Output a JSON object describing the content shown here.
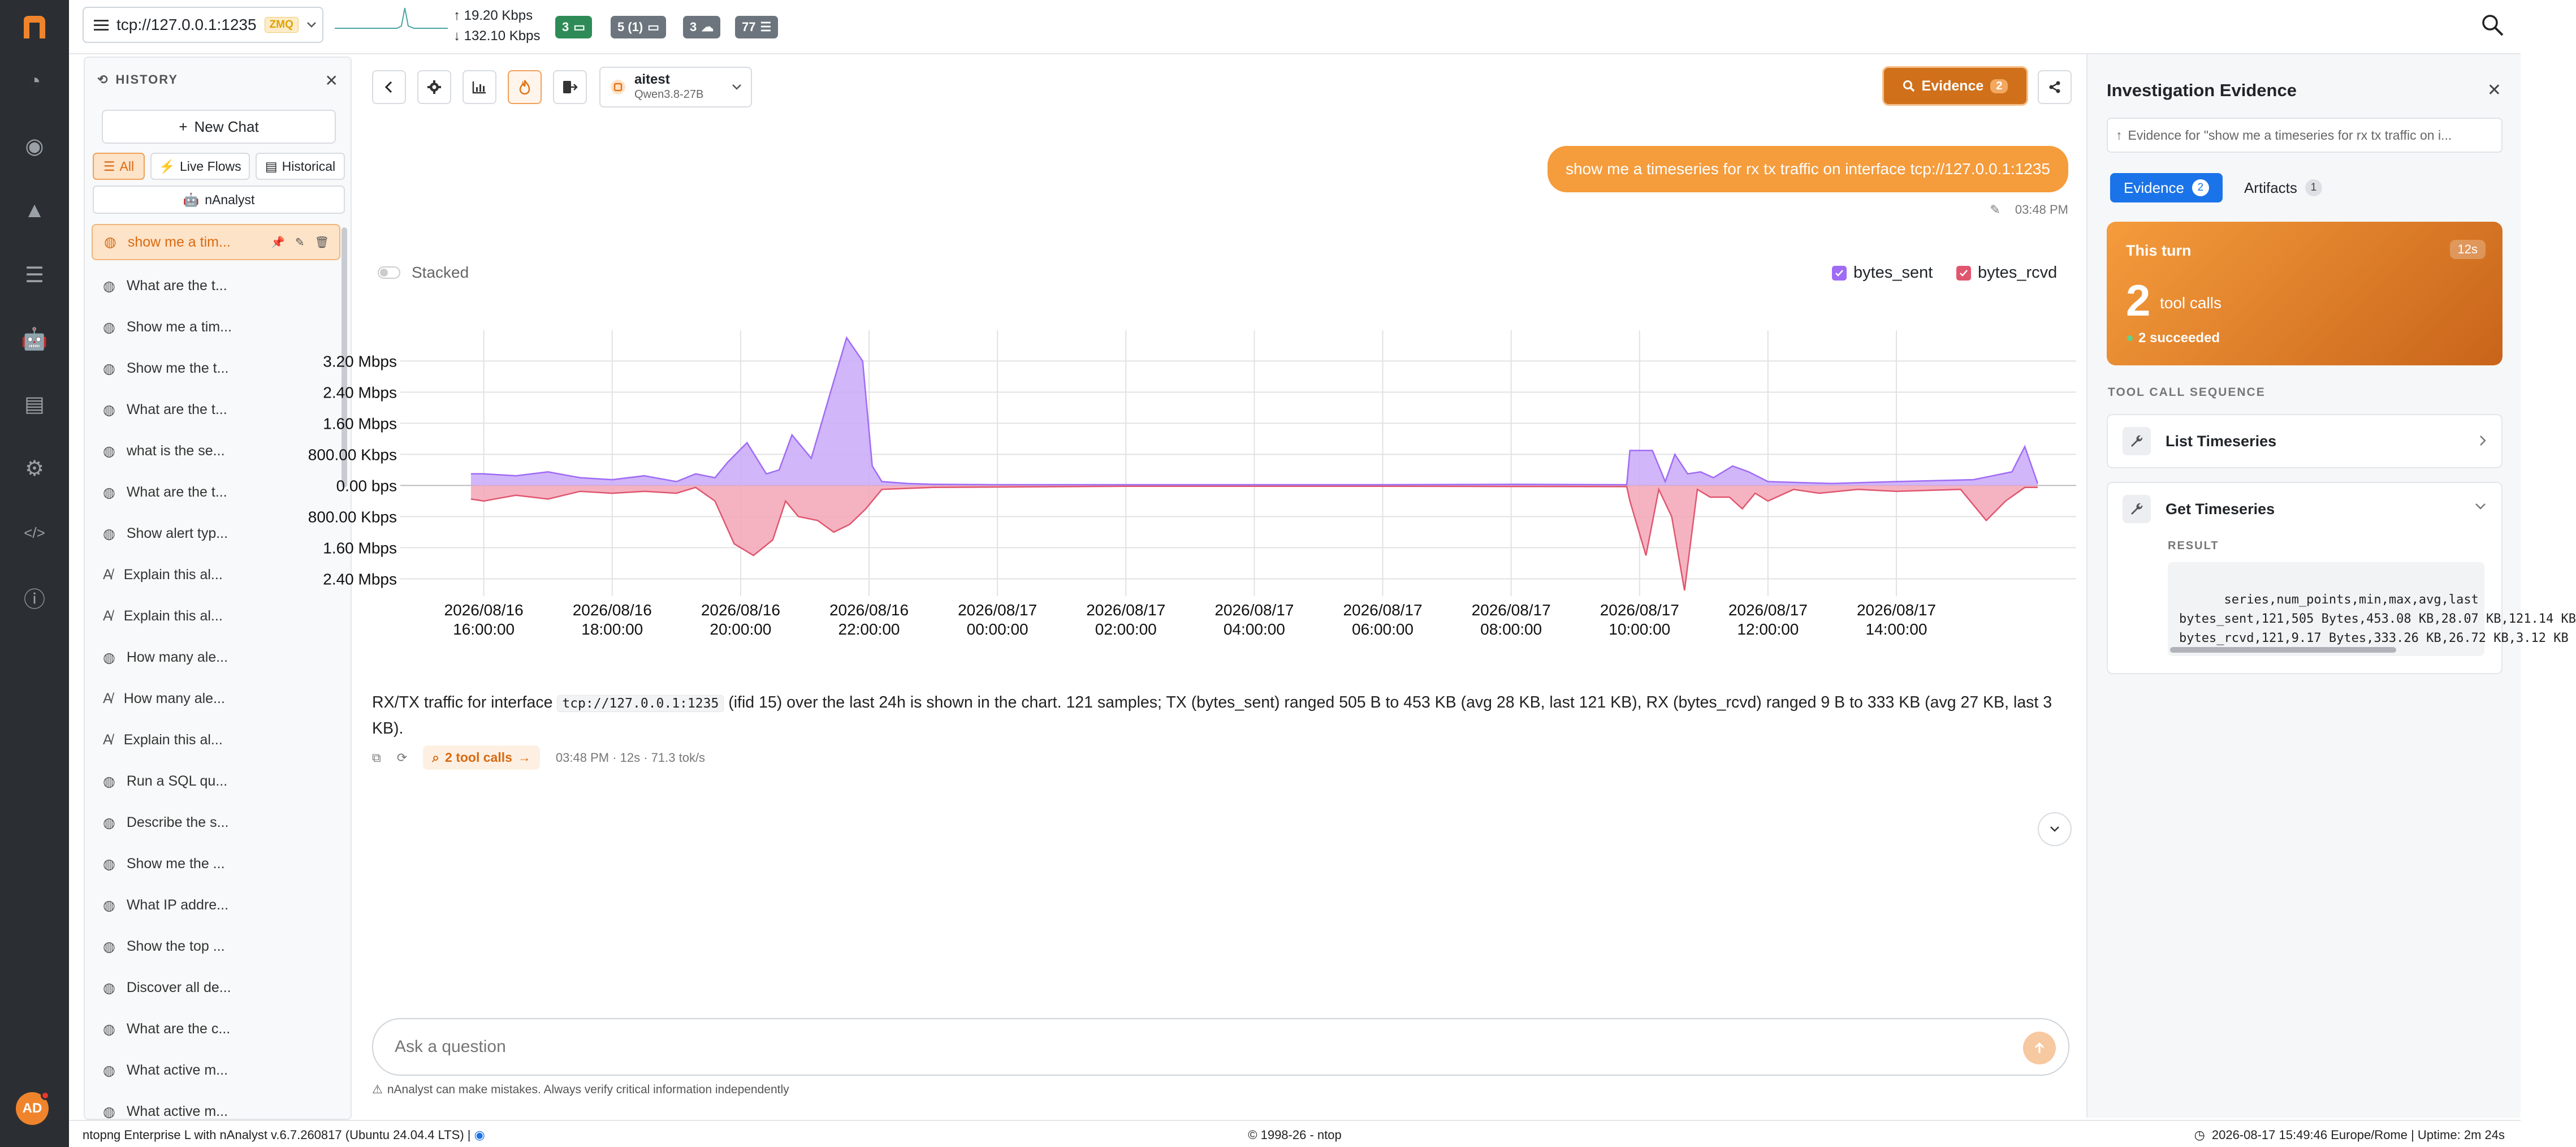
{
  "app": {
    "logo_icon": "ntop-logo",
    "brand_color": "#f0842c"
  },
  "rail": {
    "items": [
      {
        "name": "dashboard-icon"
      },
      {
        "name": "eye-icon"
      },
      {
        "name": "alert-icon"
      },
      {
        "name": "list-icon"
      },
      {
        "name": "robot-icon",
        "active": true
      },
      {
        "name": "server-icon"
      },
      {
        "name": "gear-icon"
      },
      {
        "name": "code-icon"
      },
      {
        "name": "info-icon"
      }
    ],
    "avatar_initials": "AD"
  },
  "topbar": {
    "interface": "tcp://127.0.0.1:1235",
    "interface_badge": "ZMQ",
    "upload": "19.20 Kbps",
    "download": "132.10 Kbps",
    "pills": [
      {
        "label": "3",
        "color": "#2e8b57"
      },
      {
        "label": "5 (1)",
        "color": "#6c757d"
      },
      {
        "label": "3",
        "color": "#6c757d"
      },
      {
        "label": "77",
        "color": "#6c757d"
      }
    ]
  },
  "history": {
    "title": "HISTORY",
    "new_chat": "New Chat",
    "filters": [
      {
        "label": "All",
        "active": true
      },
      {
        "label": "Live Flows"
      },
      {
        "label": "Historical"
      }
    ],
    "nanalyst_filter": "nAnalyst",
    "items": [
      {
        "label": "show me a tim...",
        "icon": "chip",
        "active": true
      },
      {
        "label": "What are the t...",
        "icon": "chip"
      },
      {
        "label": "Show me a tim...",
        "icon": "chip"
      },
      {
        "label": "Show me the t...",
        "icon": "chip"
      },
      {
        "label": "What are the t...",
        "icon": "chip"
      },
      {
        "label": "what is the se...",
        "icon": "chip"
      },
      {
        "label": "What are the t...",
        "icon": "chip"
      },
      {
        "label": "Show alert typ...",
        "icon": "chip"
      },
      {
        "label": "Explain this al...",
        "icon": "ai"
      },
      {
        "label": "Explain this al...",
        "icon": "ai"
      },
      {
        "label": "How many ale...",
        "icon": "chip"
      },
      {
        "label": "How many ale...",
        "icon": "ai"
      },
      {
        "label": "Explain this al...",
        "icon": "ai"
      },
      {
        "label": "Run a SQL qu...",
        "icon": "chip"
      },
      {
        "label": "Describe the s...",
        "icon": "chip"
      },
      {
        "label": "Show me the ...",
        "icon": "chip"
      },
      {
        "label": "What IP addre...",
        "icon": "chip"
      },
      {
        "label": "Show the top ...",
        "icon": "chip"
      },
      {
        "label": "Discover all de...",
        "icon": "chip"
      },
      {
        "label": "What are the c...",
        "icon": "chip"
      },
      {
        "label": "What active m...",
        "icon": "chip"
      },
      {
        "label": "What active m...",
        "icon": "chip"
      }
    ]
  },
  "chat": {
    "model_name": "aitest",
    "model_sub": "Qwen3.8-27B",
    "evidence_label": "Evidence",
    "evidence_count": "2",
    "user_message": "show me a timeseries for rx tx traffic on interface tcp://127.0.0.1:1235",
    "user_time": "03:48 PM",
    "stacked_label": "Stacked",
    "answer_pre": "RX/TX traffic for interface",
    "answer_code": "tcp://127.0.0.1:1235",
    "answer_post": "(ifid 15) over the last 24h is shown in the chart. 121 samples; TX (bytes_sent) ranged 505 B to 453 KB (avg 28 KB, last 121 KB), RX (bytes_rcvd) ranged 9 B to 333 KB (avg 27 KB, last 3 KB).",
    "tool_calls_chip": "2 tool calls",
    "meta": "03:48 PM · 12s · 71.3 tok/s",
    "ask_placeholder": "Ask a question",
    "disclaimer": "nAnalyst can make mistakes. Always verify critical information independently"
  },
  "chart_data": {
    "type": "area",
    "x": [
      "2026/08/16 16:00:00",
      "2026/08/16 18:00:00",
      "2026/08/16 20:00:00",
      "2026/08/16 22:00:00",
      "2026/08/17 00:00:00",
      "2026/08/17 02:00:00",
      "2026/08/17 04:00:00",
      "2026/08/17 06:00:00",
      "2026/08/17 08:00:00",
      "2026/08/17 10:00:00",
      "2026/08/17 12:00:00",
      "2026/08/17 14:00:00"
    ],
    "y_ticks": [
      "3.20 Mbps",
      "2.40 Mbps",
      "1.60 Mbps",
      "800.00 Kbps",
      "0.00 bps",
      "800.00 Kbps",
      "1.60 Mbps",
      "2.40 Mbps"
    ],
    "y_tick_values": [
      3.2,
      2.4,
      1.6,
      0.8,
      0,
      -0.8,
      -1.6,
      -2.4
    ],
    "ylim": [
      -2.7,
      3.7
    ],
    "x_range_hours": [
      0,
      24
    ],
    "series": [
      {
        "name": "bytes_sent",
        "color": "#9f6bf5",
        "fill": "#c9a9f9",
        "points": [
          [
            -0.2,
            0.3
          ],
          [
            0,
            0.3
          ],
          [
            0.5,
            0.25
          ],
          [
            1,
            0.35
          ],
          [
            1.5,
            0.2
          ],
          [
            2,
            0.15
          ],
          [
            2.5,
            0.25
          ],
          [
            3,
            0.1
          ],
          [
            3.3,
            0.3
          ],
          [
            3.6,
            0.2
          ],
          [
            3.8,
            0.6
          ],
          [
            4.1,
            1.1
          ],
          [
            4.4,
            0.3
          ],
          [
            4.6,
            0.4
          ],
          [
            4.8,
            1.3
          ],
          [
            5.1,
            0.7
          ],
          [
            5.4,
            2.4
          ],
          [
            5.65,
            3.8
          ],
          [
            5.9,
            3.2
          ],
          [
            6.05,
            0.5
          ],
          [
            6.2,
            0.1
          ],
          [
            6.6,
            0.05
          ],
          [
            7,
            0.03
          ],
          [
            8,
            0.02
          ],
          [
            10,
            0.02
          ],
          [
            12,
            0.02
          ],
          [
            14,
            0.02
          ],
          [
            16,
            0.03
          ],
          [
            17.8,
            0.02
          ],
          [
            17.85,
            0.9
          ],
          [
            18.2,
            0.9
          ],
          [
            18.4,
            0.1
          ],
          [
            18.55,
            0.8
          ],
          [
            18.75,
            0.3
          ],
          [
            18.95,
            0.35
          ],
          [
            19.15,
            0.2
          ],
          [
            19.45,
            0.5
          ],
          [
            19.7,
            0.35
          ],
          [
            20,
            0.1
          ],
          [
            21,
            0.05
          ],
          [
            22,
            0.1
          ],
          [
            23.2,
            0.15
          ],
          [
            23.5,
            0.25
          ],
          [
            23.8,
            0.35
          ],
          [
            24,
            1.0
          ],
          [
            24.2,
            0.05
          ]
        ]
      },
      {
        "name": "bytes_rcvd",
        "color": "#e0566f",
        "fill": "#f3a6b6",
        "points": [
          [
            -0.2,
            -0.35
          ],
          [
            0,
            -0.4
          ],
          [
            0.5,
            -0.25
          ],
          [
            1,
            -0.35
          ],
          [
            1.5,
            -0.15
          ],
          [
            2,
            -0.2
          ],
          [
            2.5,
            -0.15
          ],
          [
            3,
            -0.2
          ],
          [
            3.3,
            -0.05
          ],
          [
            3.6,
            -0.4
          ],
          [
            3.9,
            -1.5
          ],
          [
            4.2,
            -1.8
          ],
          [
            4.5,
            -1.4
          ],
          [
            4.7,
            -0.4
          ],
          [
            4.9,
            -0.8
          ],
          [
            5.2,
            -0.9
          ],
          [
            5.45,
            -1.2
          ],
          [
            5.7,
            -1.0
          ],
          [
            5.95,
            -0.6
          ],
          [
            6.2,
            -0.1
          ],
          [
            7,
            -0.05
          ],
          [
            10,
            -0.02
          ],
          [
            14,
            -0.02
          ],
          [
            17.8,
            -0.03
          ],
          [
            17.85,
            -0.4
          ],
          [
            18.1,
            -1.8
          ],
          [
            18.3,
            -0.1
          ],
          [
            18.5,
            -0.8
          ],
          [
            18.7,
            -2.7
          ],
          [
            18.9,
            -0.1
          ],
          [
            19.1,
            -0.3
          ],
          [
            19.4,
            -0.3
          ],
          [
            19.6,
            -0.6
          ],
          [
            19.8,
            -0.2
          ],
          [
            20,
            -0.4
          ],
          [
            20.4,
            -0.1
          ],
          [
            20.8,
            -0.2
          ],
          [
            21.4,
            -0.1
          ],
          [
            22,
            -0.15
          ],
          [
            23.0,
            -0.1
          ],
          [
            23.4,
            -0.9
          ],
          [
            23.7,
            -0.4
          ],
          [
            24,
            -0.05
          ],
          [
            24.2,
            -0.05
          ]
        ]
      }
    ],
    "legend": [
      "bytes_sent",
      "bytes_rcvd"
    ],
    "grid": true,
    "legend_position": "top-right"
  },
  "evidence": {
    "title": "Investigation Evidence",
    "for_text": "Evidence for \"show me a timeseries for rx tx traffic on i...",
    "tabs": [
      {
        "label": "Evidence",
        "count": "2",
        "active": true
      },
      {
        "label": "Artifacts",
        "count": "1"
      }
    ],
    "this_turn": "This turn",
    "duration": "12s",
    "tool_calls_count": "2",
    "tool_calls_unit": "tool calls",
    "succeeded": "2 succeeded",
    "sequence_header": "TOOL CALL SEQUENCE",
    "tools": [
      {
        "label": "List Timeseries",
        "expanded": false
      },
      {
        "label": "Get Timeseries",
        "expanded": true
      }
    ],
    "result_label": "RESULT",
    "result_text": "series,num_points,min,max,avg,last\nbytes_sent,121,505 Bytes,453.08 KB,28.07 KB,121.14 KB\nbytes_rcvd,121,9.17 Bytes,333.26 KB,26.72 KB,3.12 KB"
  },
  "footer": {
    "left": "ntopng Enterprise L with nAnalyst v.6.7.260817 (Ubuntu 24.04.4 LTS) |",
    "center": "© 1998-26 - ntop",
    "right": "2026-08-17 15:49:46  Europe/Rome | Uptime: 2m 24s"
  }
}
